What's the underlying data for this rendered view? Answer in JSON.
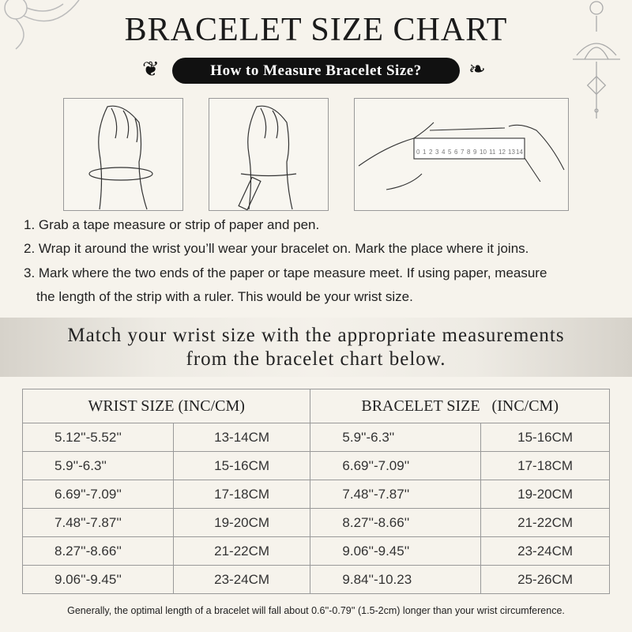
{
  "title": "BRACELET SIZE CHART",
  "subtitle": "How to Measure Bracelet Size?",
  "ruler_numbers": [
    "0",
    "1",
    "2",
    "3",
    "4",
    "5",
    "6",
    "7",
    "8",
    "9",
    "10",
    "11",
    "12",
    "13",
    "14"
  ],
  "steps": [
    "1. Grab a tape measure or strip of paper and pen.",
    "2. Wrap it around the wrist you’ll wear your bracelet on. Mark the place where it joins.",
    "3. Mark where the two ends of the paper or tape measure meet. If using paper, measure",
    "the length of the strip with a ruler. This would be your wrist size."
  ],
  "band": {
    "line1": "Match your wrist size with the appropriate measurements",
    "line2": "from the bracelet chart below."
  },
  "table": {
    "headers": [
      "WRIST SIZE (INC/CM)",
      "BRACELET SIZE   (INC/CM)"
    ],
    "rows": [
      [
        "5.12''-5.52''",
        "13-14CM",
        "5.9''-6.3''",
        "15-16CM"
      ],
      [
        "5.9''-6.3''",
        "15-16CM",
        "6.69''-7.09''",
        "17-18CM"
      ],
      [
        "6.69''-7.09''",
        "17-18CM",
        "7.48''-7.87''",
        "19-20CM"
      ],
      [
        "7.48''-7.87''",
        "19-20CM",
        "8.27''-8.66''",
        "21-22CM"
      ],
      [
        "8.27''-8.66''",
        "21-22CM",
        "9.06''-9.45''",
        "23-24CM"
      ],
      [
        "9.06''-9.45''",
        "23-24CM",
        "9.84''-10.23",
        "25-26CM"
      ]
    ]
  },
  "footer": "Generally, the optimal length of a bracelet will fall about 0.6''-0.79'' (1.5-2cm) longer than your wrist circumference."
}
